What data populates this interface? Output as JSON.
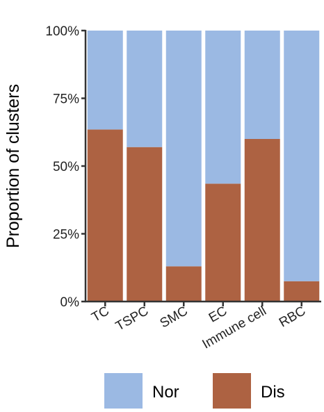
{
  "chart_data": {
    "type": "bar",
    "stacked": true,
    "percent": true,
    "categories": [
      "TC",
      "TSPC",
      "SMC",
      "EC",
      "Immune cell",
      "RBC"
    ],
    "series": [
      {
        "name": "Dis",
        "values": [
          63.5,
          57,
          13,
          43.5,
          60,
          7.5
        ],
        "color": "#AD6242"
      },
      {
        "name": "Nor",
        "values": [
          36.5,
          43,
          87,
          56.5,
          40,
          92.5
        ],
        "color": "#9BB9E3"
      }
    ],
    "ylabel": "Proportion of clusters",
    "ylim": [
      0,
      100
    ],
    "yticks": [
      "0%",
      "25%",
      "50%",
      "75%",
      "100%"
    ],
    "grid": false,
    "legend": {
      "position": "bottom",
      "entries": [
        "Nor",
        "Dis"
      ]
    }
  }
}
